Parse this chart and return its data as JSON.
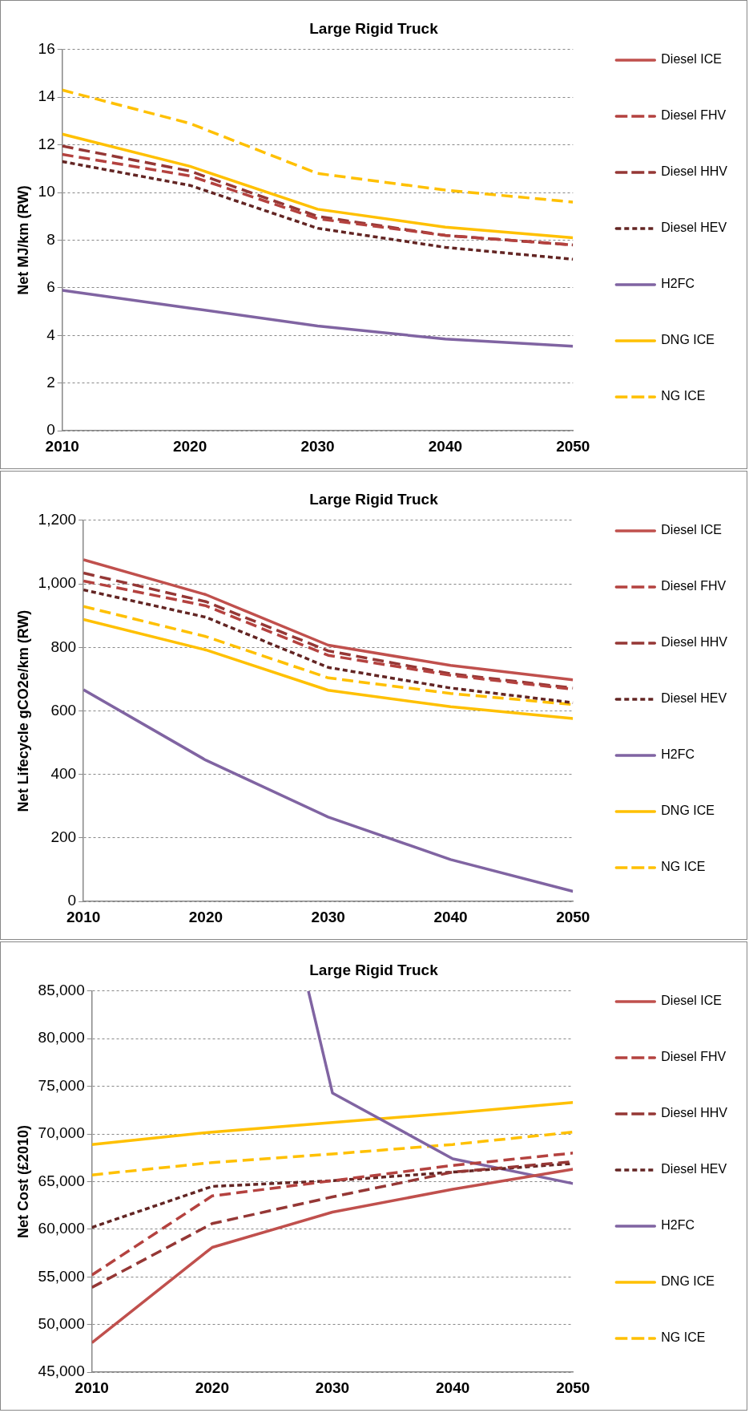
{
  "chart_data": [
    {
      "type": "line",
      "title": "Large Rigid Truck",
      "ylabel": "Net MJ/km (RW)",
      "x": [
        2010,
        2020,
        2030,
        2040,
        2050
      ],
      "xlim": [
        2010,
        2050
      ],
      "xticks": [
        2010,
        2020,
        2030,
        2040,
        2050
      ],
      "ylim": [
        0,
        16
      ],
      "yticks": [
        0,
        2,
        4,
        6,
        8,
        10,
        12,
        14,
        16
      ],
      "grid": "y",
      "legend": "right",
      "series": [
        {
          "name": "Diesel ICE",
          "color": "#c0504d",
          "line_style": "solid",
          "values": [
            null,
            null,
            null,
            null,
            null
          ]
        },
        {
          "name": "Diesel FHV",
          "color": "#b4423f",
          "line_style": "dashed",
          "values": [
            11.6,
            10.7,
            8.9,
            8.2,
            7.8
          ]
        },
        {
          "name": "Diesel HHV",
          "color": "#953735",
          "line_style": "dashed",
          "values": [
            11.95,
            10.9,
            9.0,
            8.2,
            7.8
          ]
        },
        {
          "name": "Diesel HEV",
          "color": "#632523",
          "line_style": "dotted",
          "values": [
            11.3,
            10.3,
            8.5,
            7.7,
            7.2
          ]
        },
        {
          "name": "H2FC",
          "color": "#8064a2",
          "line_style": "solid",
          "values": [
            5.9,
            5.15,
            4.4,
            3.85,
            3.55
          ]
        },
        {
          "name": "DNG ICE",
          "color": "#ffc000",
          "line_style": "solid",
          "values": [
            12.45,
            11.1,
            9.3,
            8.55,
            8.1
          ]
        },
        {
          "name": "NG ICE",
          "color": "#ffc000",
          "line_style": "dashed",
          "values": [
            14.3,
            12.9,
            10.8,
            10.1,
            9.6
          ]
        }
      ]
    },
    {
      "type": "line",
      "title": "Large Rigid Truck",
      "ylabel": "Net Lifecycle gCO2e/km (RW)",
      "x": [
        2010,
        2020,
        2030,
        2040,
        2050
      ],
      "xlim": [
        2010,
        2050
      ],
      "xticks": [
        2010,
        2020,
        2030,
        2040,
        2050
      ],
      "ylim": [
        0,
        1200
      ],
      "yticks": [
        0,
        200,
        400,
        600,
        800,
        {
          "value": 1000,
          "label": "1,000"
        },
        {
          "value": 1200,
          "label": "1,200"
        }
      ],
      "grid": "y",
      "legend": "right",
      "series": [
        {
          "name": "Diesel ICE",
          "color": "#c0504d",
          "line_style": "solid",
          "values": [
            1076,
            966,
            807,
            743,
            698
          ]
        },
        {
          "name": "Diesel FHV",
          "color": "#b4423f",
          "line_style": "dashed",
          "values": [
            1009,
            931,
            775,
            712,
            668
          ]
        },
        {
          "name": "Diesel HHV",
          "color": "#953735",
          "line_style": "dashed",
          "values": [
            1034,
            944,
            789,
            717,
            672
          ]
        },
        {
          "name": "Diesel HEV",
          "color": "#632523",
          "line_style": "dotted",
          "values": [
            981,
            895,
            737,
            672,
            626
          ]
        },
        {
          "name": "H2FC",
          "color": "#8064a2",
          "line_style": "solid",
          "values": [
            667,
            445,
            266,
            132,
            32
          ]
        },
        {
          "name": "DNG ICE",
          "color": "#ffc000",
          "line_style": "solid",
          "values": [
            888,
            792,
            665,
            613,
            576
          ]
        },
        {
          "name": "NG ICE",
          "color": "#ffc000",
          "line_style": "dashed",
          "values": [
            929,
            834,
            704,
            655,
            620
          ]
        }
      ]
    },
    {
      "type": "line",
      "title": "Large Rigid Truck",
      "ylabel": "Net Cost (£2010)",
      "x": [
        2010,
        2020,
        2030,
        2040,
        2050
      ],
      "xlim": [
        2010,
        2050
      ],
      "xticks": [
        2010,
        2020,
        2030,
        2040,
        2050
      ],
      "ylim": [
        45000,
        85000
      ],
      "yticks": [
        {
          "value": 45000,
          "label": "45,000"
        },
        {
          "value": 50000,
          "label": "50,000"
        },
        {
          "value": 55000,
          "label": "55,000"
        },
        {
          "value": 60000,
          "label": "60,000"
        },
        {
          "value": 65000,
          "label": "65,000"
        },
        {
          "value": 70000,
          "label": "70,000"
        },
        {
          "value": 75000,
          "label": "75,000"
        },
        {
          "value": 80000,
          "label": "80,000"
        },
        {
          "value": 85000,
          "label": "85,000"
        }
      ],
      "grid": "y",
      "legend": "right",
      "series": [
        {
          "name": "Diesel ICE",
          "color": "#c0504d",
          "line_style": "solid",
          "values": [
            48100,
            58100,
            61800,
            64200,
            66300
          ]
        },
        {
          "name": "Diesel FHV",
          "color": "#b4423f",
          "line_style": "dashed",
          "values": [
            55200,
            63500,
            65100,
            66700,
            68000
          ]
        },
        {
          "name": "Diesel HHV",
          "color": "#953735",
          "line_style": "dashed",
          "values": [
            53900,
            60600,
            63400,
            66000,
            67100
          ]
        },
        {
          "name": "Diesel HEV",
          "color": "#632523",
          "line_style": "dotted",
          "values": [
            60200,
            64500,
            65100,
            66000,
            66900
          ]
        },
        {
          "name": "H2FC",
          "color": "#8064a2",
          "line_style": "solid",
          "x": [
            2028,
            2030,
            2040,
            2050
          ],
          "values": [
            85000,
            74300,
            67400,
            64800
          ]
        },
        {
          "name": "DNG ICE",
          "color": "#ffc000",
          "line_style": "solid",
          "values": [
            68900,
            70200,
            71200,
            72200,
            73300
          ]
        },
        {
          "name": "NG ICE",
          "color": "#ffc000",
          "line_style": "dashed",
          "values": [
            65700,
            67000,
            67900,
            68900,
            70200
          ]
        }
      ]
    }
  ]
}
